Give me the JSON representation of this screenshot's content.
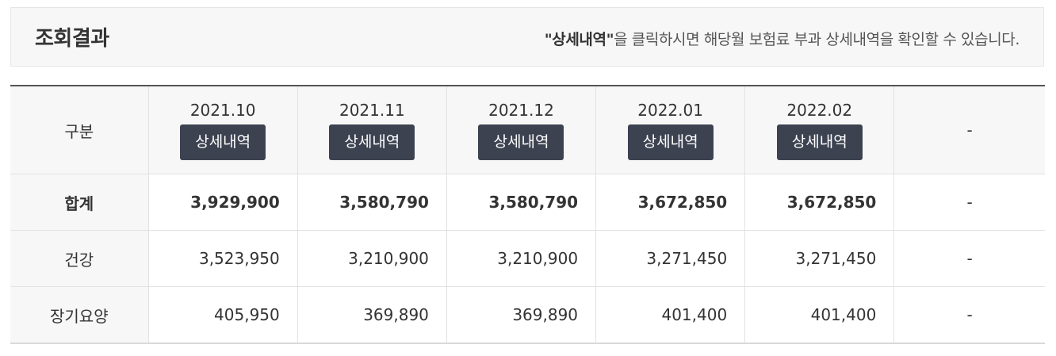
{
  "header": {
    "title": "조회결과",
    "note_strong": "\"상세내역\"",
    "note_rest": "을 클릭하시면 해당월 보험료 부과 상세내역을 확인할 수 있습니다."
  },
  "table": {
    "corner_label": "구분",
    "detail_button_label": "상세내역",
    "months": [
      "2021.10",
      "2021.11",
      "2021.12",
      "2022.01",
      "2022.02"
    ],
    "empty_column_label": "-",
    "rows": [
      {
        "label": "합계",
        "values": [
          "3,929,900",
          "3,580,790",
          "3,580,790",
          "3,672,850",
          "3,672,850"
        ],
        "empty": "-"
      },
      {
        "label": "건강",
        "values": [
          "3,523,950",
          "3,210,900",
          "3,210,900",
          "3,271,450",
          "3,271,450"
        ],
        "empty": "-"
      },
      {
        "label": "장기요양",
        "values": [
          "405,950",
          "369,890",
          "369,890",
          "401,400",
          "401,400"
        ],
        "empty": "-"
      }
    ]
  }
}
